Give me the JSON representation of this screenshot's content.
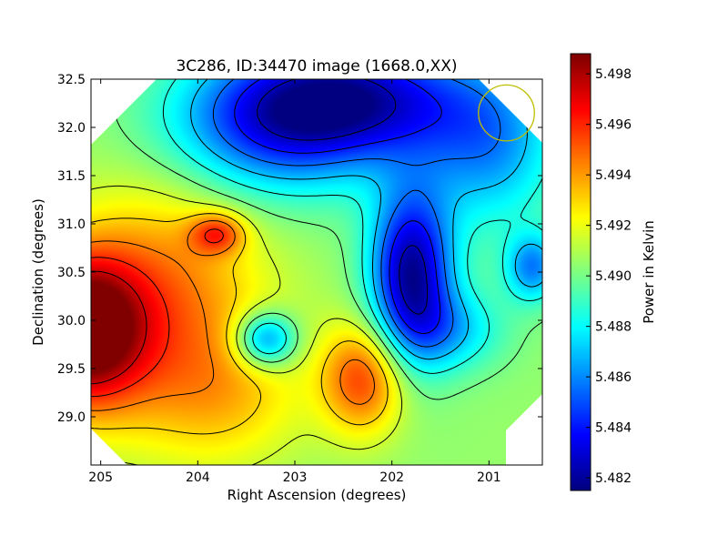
{
  "chart_data": {
    "type": "heatmap",
    "title": "3C286, ID:34470 image (1668.0,XX)",
    "xlabel": "Right Ascension (degrees)",
    "ylabel": "Declination (degrees)",
    "xlim": [
      205.1,
      200.45
    ],
    "ylim": [
      28.5,
      32.5
    ],
    "x_ticks": [
      205,
      204,
      203,
      202,
      201
    ],
    "x_tick_labels": [
      "205",
      "204",
      "203",
      "202",
      "201"
    ],
    "y_ticks": [
      29.0,
      29.5,
      30.0,
      30.5,
      31.0,
      31.5,
      32.0,
      32.5
    ],
    "y_tick_labels": [
      "29.0",
      "29.5",
      "30.0",
      "30.5",
      "31.0",
      "31.5",
      "32.0",
      "32.5"
    ],
    "colorbar": {
      "label": "Power in Kelvin",
      "range": [
        5.4815,
        5.4988
      ],
      "ticks": [
        5.482,
        5.484,
        5.486,
        5.488,
        5.49,
        5.492,
        5.494,
        5.496,
        5.498
      ],
      "tick_labels": [
        "5.482",
        "5.484",
        "5.486",
        "5.488",
        "5.490",
        "5.492",
        "5.494",
        "5.496",
        "5.498"
      ],
      "colormap": "jet"
    },
    "field": {
      "base": 5.4905,
      "components": [
        {
          "ra": 205.2,
          "dec": 29.9,
          "amp": 0.0095,
          "sigma_ra": 0.45,
          "sigma_dec": 0.55
        },
        {
          "ra": 204.3,
          "dec": 30.2,
          "amp": 0.004,
          "sigma_ra": 0.7,
          "sigma_dec": 0.9
        },
        {
          "ra": 203.8,
          "dec": 30.9,
          "amp": 0.004,
          "sigma_ra": 0.2,
          "sigma_dec": 0.15
        },
        {
          "ra": 202.3,
          "dec": 29.4,
          "amp": 0.005,
          "sigma_ra": 0.3,
          "sigma_dec": 0.4
        },
        {
          "ra": 203.7,
          "dec": 29.2,
          "amp": 0.002,
          "sigma_ra": 0.6,
          "sigma_dec": 0.5
        },
        {
          "ra": 203.3,
          "dec": 29.8,
          "amp": -0.0055,
          "sigma_ra": 0.22,
          "sigma_dec": 0.2
        },
        {
          "ra": 201.8,
          "dec": 30.5,
          "amp": -0.0085,
          "sigma_ra": 0.3,
          "sigma_dec": 0.6
        },
        {
          "ra": 202.5,
          "dec": 32.3,
          "amp": -0.008,
          "sigma_ra": 0.9,
          "sigma_dec": 0.45
        },
        {
          "ra": 203.3,
          "dec": 31.9,
          "amp": -0.004,
          "sigma_ra": 0.8,
          "sigma_dec": 0.5
        },
        {
          "ra": 201.0,
          "dec": 31.8,
          "amp": -0.004,
          "sigma_ra": 0.5,
          "sigma_dec": 0.6
        },
        {
          "ra": 200.55,
          "dec": 30.55,
          "amp": -0.0045,
          "sigma_ra": 0.2,
          "sigma_dec": 0.25
        },
        {
          "ra": 201.4,
          "dec": 29.9,
          "amp": -0.003,
          "sigma_ra": 0.4,
          "sigma_dec": 0.3
        }
      ],
      "contour_levels": [
        5.4825,
        5.484,
        5.4855,
        5.487,
        5.4885,
        5.49,
        5.4915,
        5.493,
        5.4945,
        5.496,
        5.4975
      ]
    },
    "beam_circle": {
      "ra": 200.82,
      "dec": 32.15,
      "radius_deg": 0.29,
      "color": "#bfbf00"
    }
  }
}
